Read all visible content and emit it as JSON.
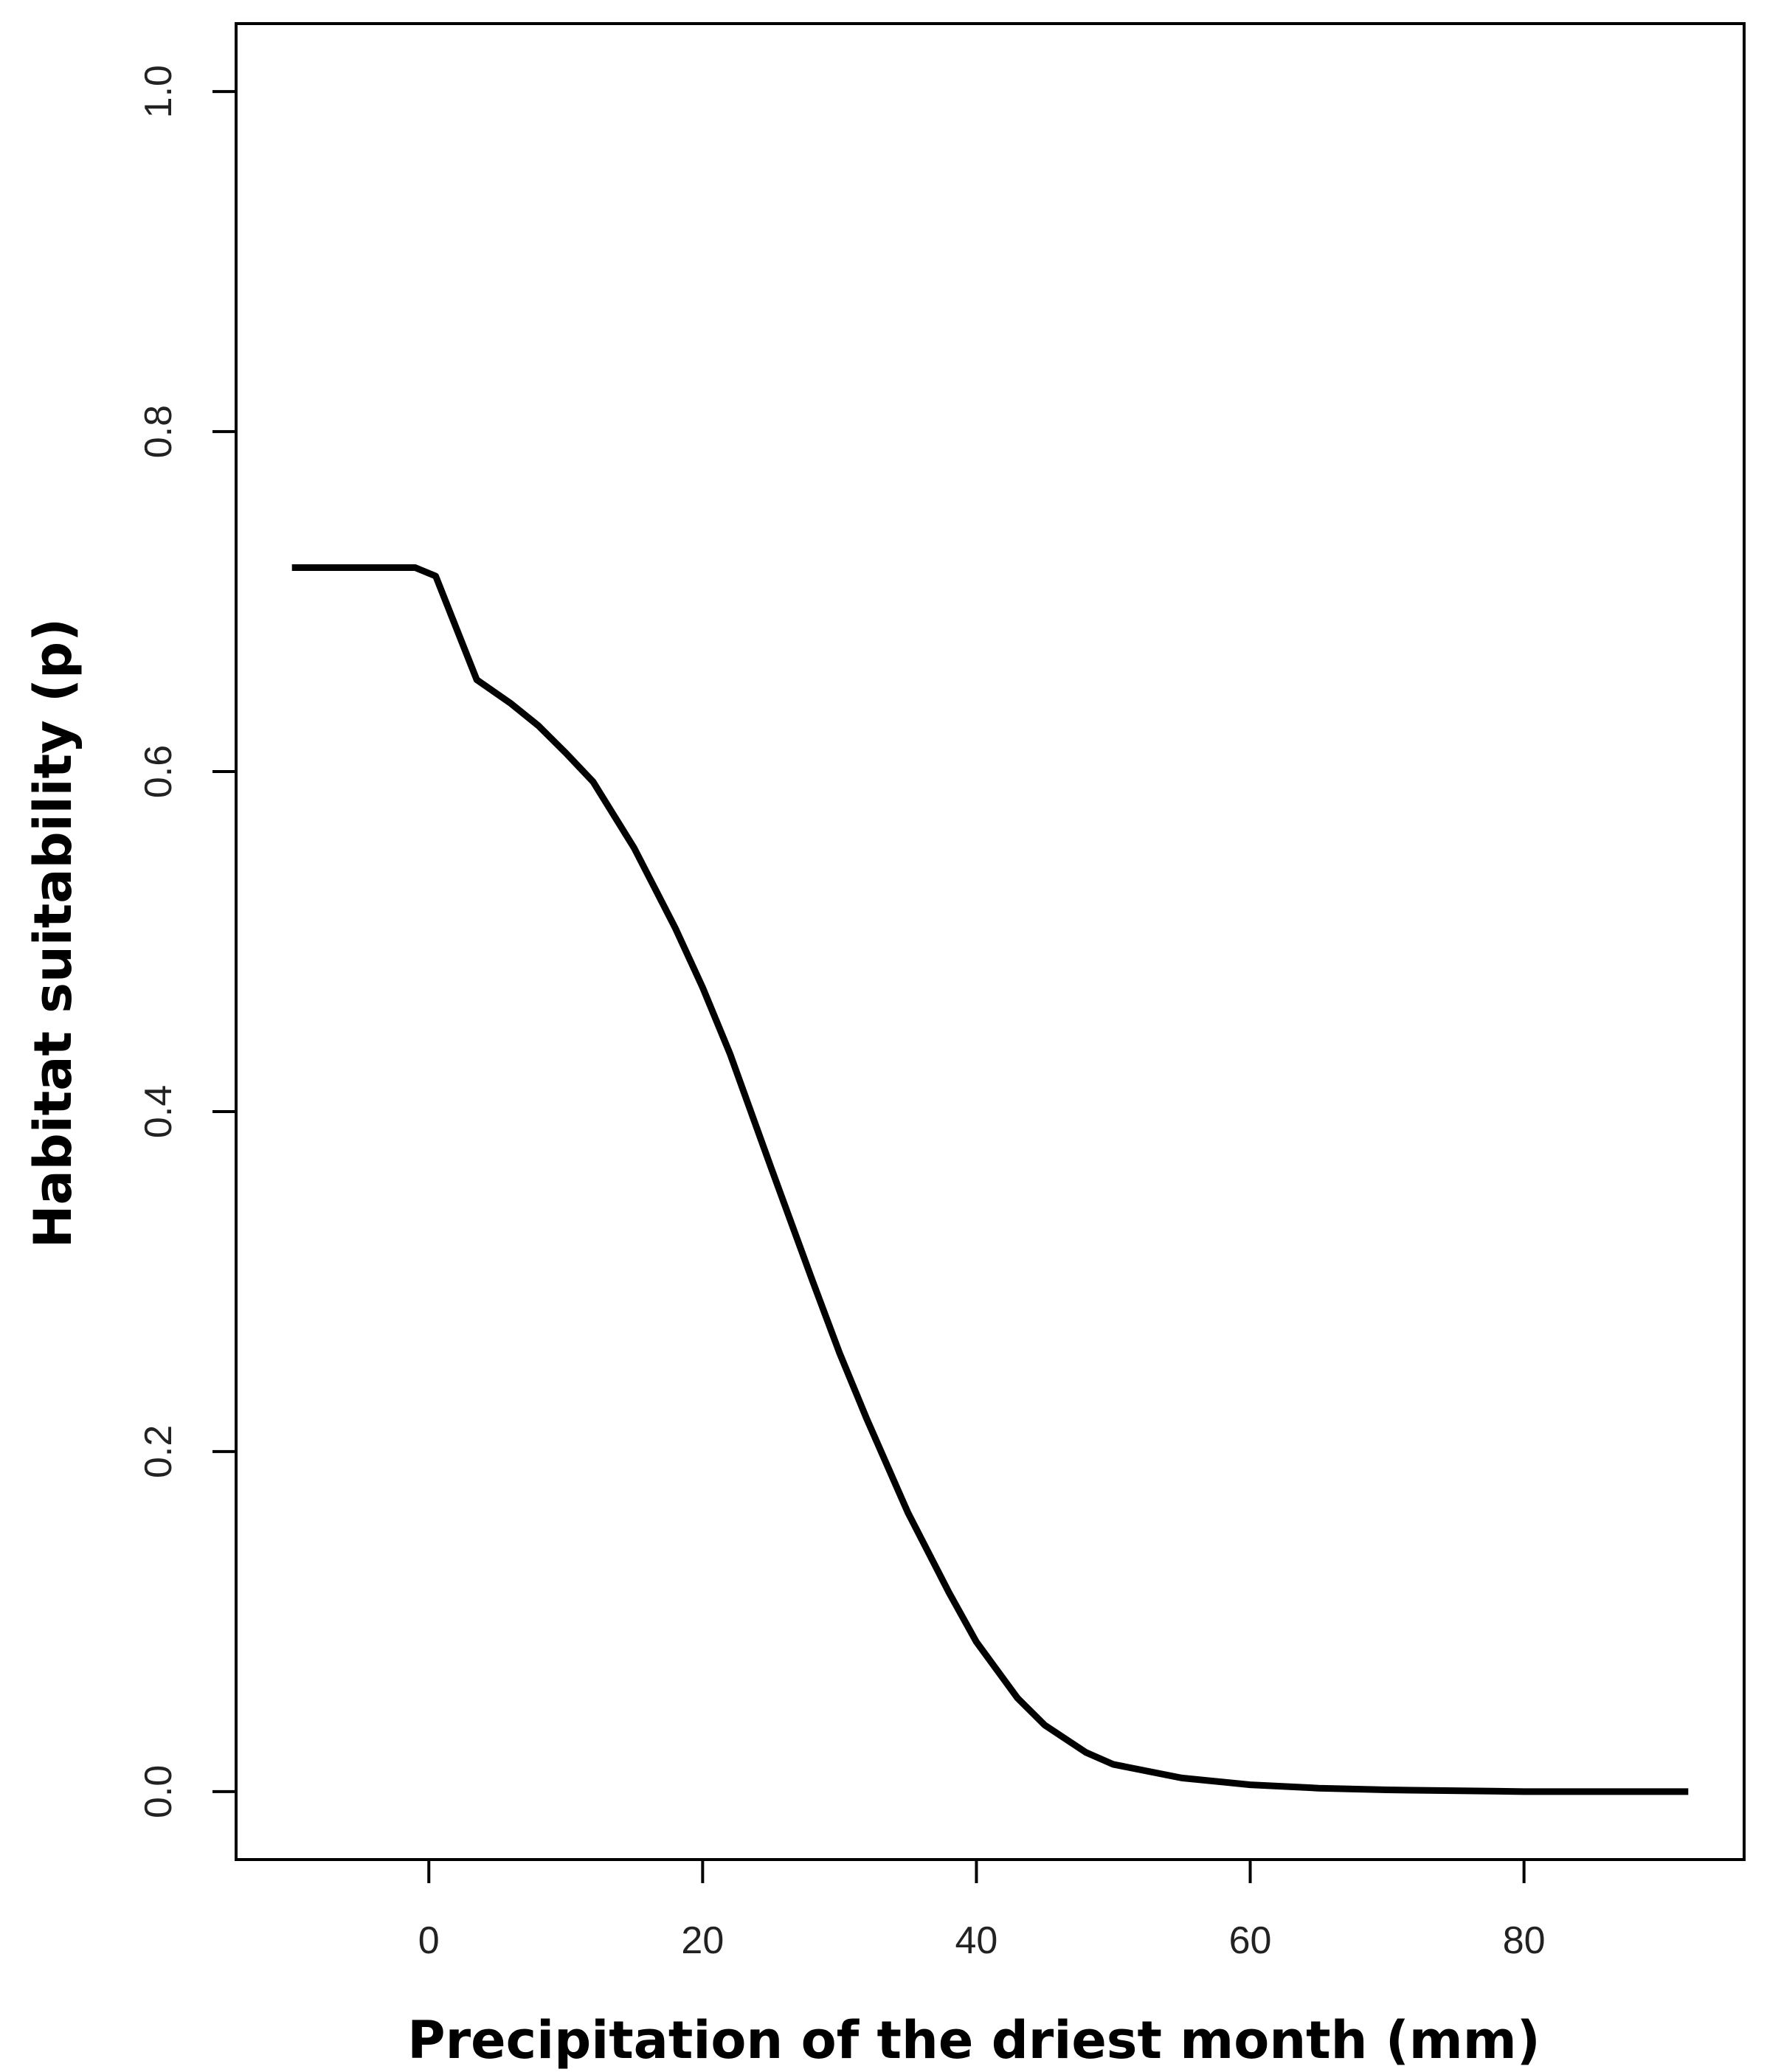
{
  "chart_data": {
    "type": "line",
    "x_label": "Precipitation of the driest month (mm)",
    "y_label": "Habitat suitability (p)",
    "x": [
      -10,
      -1,
      0.5,
      3.5,
      6,
      8,
      10,
      12,
      15,
      18,
      20,
      22,
      25,
      28,
      30,
      32,
      35,
      38,
      40,
      43,
      45,
      48,
      50,
      55,
      60,
      65,
      70,
      80,
      92
    ],
    "series": [
      {
        "color": "#000000",
        "values": [
          0.72,
          0.72,
          0.715,
          0.654,
          0.64,
          0.627,
          0.611,
          0.594,
          0.555,
          0.508,
          0.473,
          0.434,
          0.367,
          0.301,
          0.258,
          0.219,
          0.164,
          0.117,
          0.088,
          0.055,
          0.039,
          0.023,
          0.016,
          0.008,
          0.004,
          0.002,
          0.001,
          0.0,
          0.0
        ]
      }
    ],
    "xlim": [
      -14.08,
      96.08
    ],
    "xticks": [
      0,
      20,
      40,
      60,
      80
    ],
    "ylim": [
      -0.04,
      1.04
    ],
    "yticks": [
      {
        "value": 0,
        "label": "0.0"
      },
      {
        "value": 0.2,
        "label": "0.2"
      },
      {
        "value": 0.4,
        "label": "0.4"
      },
      {
        "value": 0.6,
        "label": "0.6"
      },
      {
        "value": 0.8,
        "label": "0.8"
      },
      {
        "value": 1,
        "label": "1.0"
      }
    ]
  }
}
